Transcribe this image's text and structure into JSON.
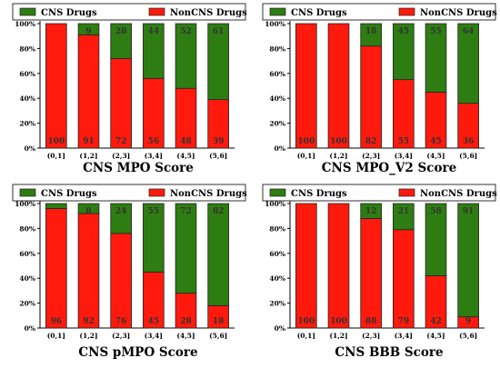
{
  "colors": {
    "cns": "#2e7d12",
    "noncns": "#ff1a0d",
    "stroke": "#222222"
  },
  "legend": {
    "cns": "CNS Drugs",
    "noncns": "NonCNS Drugs"
  },
  "chart_data": [
    {
      "type": "bar",
      "stacked": true,
      "title": "CNS MPO Score",
      "categories": [
        "(0,1]",
        "(1,2]",
        "(2,3]",
        "(3,4]",
        "(4,5]",
        "(5,6]"
      ],
      "yticks": [
        "0%",
        "20%",
        "40%",
        "60%",
        "80%",
        "100%"
      ],
      "ylim": [
        0,
        100
      ],
      "legend_position": "top",
      "series": [
        {
          "name": "NonCNS Drugs",
          "values": [
            100,
            91,
            72,
            56,
            48,
            39
          ],
          "labels": [
            "100",
            "91",
            "72",
            "56",
            "48",
            "39"
          ]
        },
        {
          "name": "CNS Drugs",
          "values": [
            0,
            9,
            28,
            44,
            52,
            61
          ],
          "labels": [
            "",
            "9",
            "28",
            "44",
            "52",
            "61"
          ]
        }
      ]
    },
    {
      "type": "bar",
      "stacked": true,
      "title": "CNS MPO_V2 Score",
      "categories": [
        "(0,1]",
        "(1,2]",
        "(2,3]",
        "(3,4]",
        "(4,5]",
        "(5,6]"
      ],
      "yticks": [
        "0%",
        "20%",
        "40%",
        "60%",
        "80%",
        "100%"
      ],
      "ylim": [
        0,
        100
      ],
      "legend_position": "top",
      "series": [
        {
          "name": "NonCNS Drugs",
          "values": [
            100,
            100,
            82,
            55,
            45,
            36
          ],
          "labels": [
            "100",
            "100",
            "82",
            "55",
            "45",
            "36"
          ]
        },
        {
          "name": "CNS Drugs",
          "values": [
            0,
            0,
            18,
            45,
            55,
            64
          ],
          "labels": [
            "",
            "",
            "18",
            "45",
            "55",
            "64"
          ]
        }
      ]
    },
    {
      "type": "bar",
      "stacked": true,
      "title": "CNS pMPO Score",
      "categories": [
        "(0,1]",
        "(1,2]",
        "(2,3]",
        "(3,4]",
        "(4,5]",
        "(5,6]"
      ],
      "yticks": [
        "0%",
        "20%",
        "40%",
        "60%",
        "80%",
        "100%"
      ],
      "ylim": [
        0,
        100
      ],
      "legend_position": "top",
      "series": [
        {
          "name": "NonCNS Drugs",
          "values": [
            96,
            92,
            76,
            45,
            28,
            18
          ],
          "labels": [
            "96",
            "92",
            "76",
            "45",
            "28",
            "18"
          ]
        },
        {
          "name": "CNS Drugs",
          "values": [
            4,
            8,
            24,
            55,
            72,
            82
          ],
          "labels": [
            "",
            "8",
            "24",
            "55",
            "72",
            "82"
          ]
        }
      ]
    },
    {
      "type": "bar",
      "stacked": true,
      "title": "CNS BBB Score",
      "categories": [
        "(0,1]",
        "(1,2]",
        "(2,3]",
        "(3,4]",
        "(4,5]",
        "(5,6]"
      ],
      "yticks": [
        "0%",
        "20%",
        "40%",
        "60%",
        "80%",
        "100%"
      ],
      "ylim": [
        0,
        100
      ],
      "legend_position": "top",
      "series": [
        {
          "name": "NonCNS Drugs",
          "values": [
            100,
            100,
            88,
            79,
            42,
            9
          ],
          "labels": [
            "100",
            "100",
            "88",
            "79",
            "42",
            "9"
          ]
        },
        {
          "name": "CNS Drugs",
          "values": [
            0,
            0,
            12,
            21,
            58,
            91
          ],
          "labels": [
            "",
            "",
            "12",
            "21",
            "58",
            "91"
          ]
        }
      ]
    }
  ]
}
